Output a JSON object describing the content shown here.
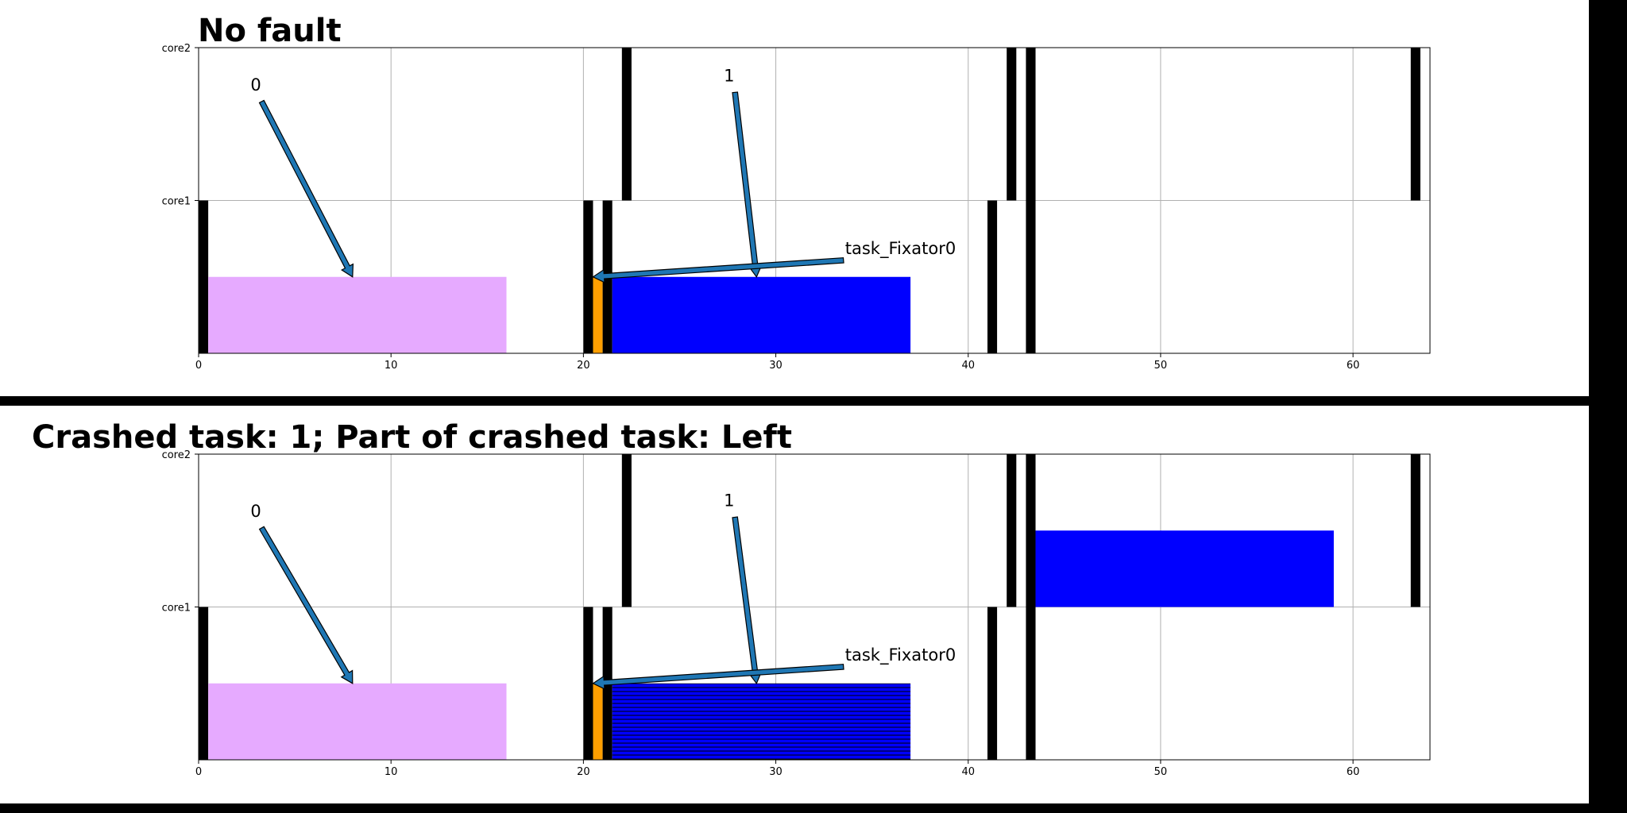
{
  "chart_data": [
    {
      "type": "gantt",
      "title": "No fault",
      "xlim": [
        0,
        64
      ],
      "xticks": [
        "0",
        "10",
        "20",
        "30",
        "40",
        "50",
        "60"
      ],
      "lanes": [
        "core1",
        "core2"
      ],
      "grid": true,
      "bars": [
        {
          "lane": "core1",
          "start": 0,
          "end": 0.5,
          "color": "#000000",
          "height": "full"
        },
        {
          "lane": "core1",
          "start": 0.5,
          "end": 16,
          "color": "#e6aaff",
          "height": "half"
        },
        {
          "lane": "core1",
          "start": 20,
          "end": 20.5,
          "color": "#000000",
          "height": "full"
        },
        {
          "lane": "core1",
          "start": 20.5,
          "end": 21,
          "color": "#ff9f00",
          "height": "half"
        },
        {
          "lane": "core1",
          "start": 21,
          "end": 21.5,
          "color": "#000000",
          "height": "full"
        },
        {
          "lane": "core1",
          "start": 21.5,
          "end": 37,
          "color": "#0000ff",
          "height": "half"
        },
        {
          "lane": "core1",
          "start": 41,
          "end": 41.5,
          "color": "#000000",
          "height": "full"
        },
        {
          "lane": "core1",
          "start": 43,
          "end": 43.5,
          "color": "#000000",
          "height": "full"
        },
        {
          "lane": "core2",
          "start": 22,
          "end": 22.5,
          "color": "#000000",
          "height": "full"
        },
        {
          "lane": "core2",
          "start": 42,
          "end": 42.5,
          "color": "#000000",
          "height": "full"
        },
        {
          "lane": "core2",
          "start": 43,
          "end": 43.5,
          "color": "#000000",
          "height": "full"
        },
        {
          "lane": "core2",
          "start": 63,
          "end": 63.5,
          "color": "#000000",
          "height": "full"
        }
      ],
      "annotations": [
        {
          "text": "0",
          "text_x": 2.7,
          "text_y": 1.72,
          "target_x": 8,
          "target_y": 0.5
        },
        {
          "text": "1",
          "text_x": 27.3,
          "text_y": 1.78,
          "target_x": 29,
          "target_y": 0.5
        },
        {
          "text": "task_Fixator0",
          "text_x": 33.6,
          "text_y": 0.65,
          "target_x": 20.5,
          "target_y": 0.5
        }
      ]
    },
    {
      "type": "gantt",
      "title": "Crashed task: 1; Part of crashed task: Left",
      "xlim": [
        0,
        64
      ],
      "xticks": [
        "0",
        "10",
        "20",
        "30",
        "40",
        "50",
        "60"
      ],
      "lanes": [
        "core1",
        "core2"
      ],
      "grid": true,
      "bars": [
        {
          "lane": "core1",
          "start": 0,
          "end": 0.5,
          "color": "#000000",
          "height": "full"
        },
        {
          "lane": "core1",
          "start": 0.5,
          "end": 16,
          "color": "#e6aaff",
          "height": "half"
        },
        {
          "lane": "core1",
          "start": 20,
          "end": 20.5,
          "color": "#000000",
          "height": "full"
        },
        {
          "lane": "core1",
          "start": 20.5,
          "end": 21,
          "color": "#ff9f00",
          "height": "half"
        },
        {
          "lane": "core1",
          "start": 21,
          "end": 21.5,
          "color": "#000000",
          "height": "full"
        },
        {
          "lane": "core1",
          "start": 21.5,
          "end": 37,
          "color": "#0000ff",
          "height": "half",
          "hatch": "horizontal"
        },
        {
          "lane": "core1",
          "start": 41,
          "end": 41.5,
          "color": "#000000",
          "height": "full"
        },
        {
          "lane": "core1",
          "start": 43,
          "end": 43.5,
          "color": "#000000",
          "height": "full"
        },
        {
          "lane": "core2",
          "start": 22,
          "end": 22.5,
          "color": "#000000",
          "height": "full"
        },
        {
          "lane": "core2",
          "start": 42,
          "end": 42.5,
          "color": "#000000",
          "height": "full"
        },
        {
          "lane": "core2",
          "start": 43,
          "end": 43.5,
          "color": "#000000",
          "height": "full"
        },
        {
          "lane": "core2",
          "start": 43.5,
          "end": 59,
          "color": "#0000ff",
          "height": "half"
        },
        {
          "lane": "core2",
          "start": 63,
          "end": 63.5,
          "color": "#000000",
          "height": "full"
        }
      ],
      "annotations": [
        {
          "text": "0",
          "text_x": 2.7,
          "text_y": 1.59,
          "target_x": 8,
          "target_y": 0.5
        },
        {
          "text": "1",
          "text_x": 27.3,
          "text_y": 1.66,
          "target_x": 29,
          "target_y": 0.5
        },
        {
          "text": "task_Fixator0",
          "text_x": 33.6,
          "text_y": 0.65,
          "target_x": 20.5,
          "target_y": 0.5
        }
      ]
    }
  ],
  "colors": {
    "arrow_fill": "#1f77b4",
    "separator": "#000000",
    "grid": "#b0b0b0"
  }
}
